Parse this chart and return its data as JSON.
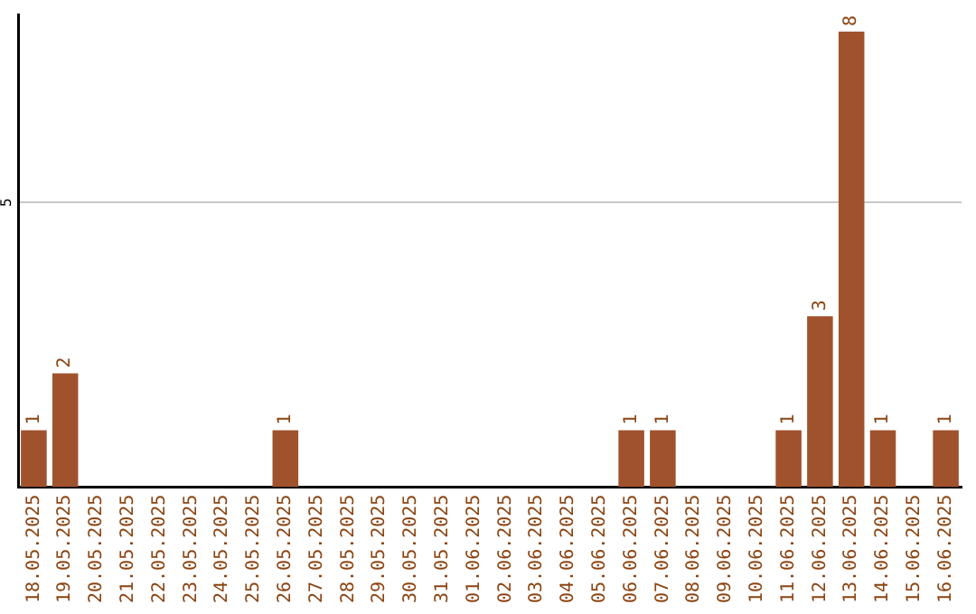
{
  "chart_data": {
    "type": "bar",
    "categories": [
      "18.05.2025",
      "19.05.2025",
      "20.05.2025",
      "21.05.2025",
      "22.05.2025",
      "23.05.2025",
      "24.05.2025",
      "25.05.2025",
      "26.05.2025",
      "27.05.2025",
      "28.05.2025",
      "29.05.2025",
      "30.05.2025",
      "31.05.2025",
      "01.06.2025",
      "02.06.2025",
      "03.06.2025",
      "04.06.2025",
      "05.06.2025",
      "06.06.2025",
      "07.06.2025",
      "08.06.2025",
      "09.06.2025",
      "10.06.2025",
      "11.06.2025",
      "12.06.2025",
      "13.06.2025",
      "14.06.2025",
      "15.06.2025",
      "16.06.2025"
    ],
    "values": [
      1,
      2,
      0,
      0,
      0,
      0,
      0,
      0,
      1,
      0,
      0,
      0,
      0,
      0,
      0,
      0,
      0,
      0,
      0,
      1,
      1,
      0,
      0,
      0,
      1,
      3,
      8,
      1,
      0,
      1
    ],
    "value_labels": [
      "1",
      "2",
      null,
      null,
      null,
      null,
      null,
      null,
      "1",
      null,
      null,
      null,
      null,
      null,
      null,
      null,
      null,
      null,
      null,
      "1",
      "1",
      null,
      null,
      null,
      "1",
      "3",
      "8",
      "1",
      null,
      "1"
    ],
    "color": "#a0522d",
    "ylim": [
      0,
      8.3
    ],
    "yticks": [
      5
    ],
    "grid": "y",
    "legend": false
  }
}
